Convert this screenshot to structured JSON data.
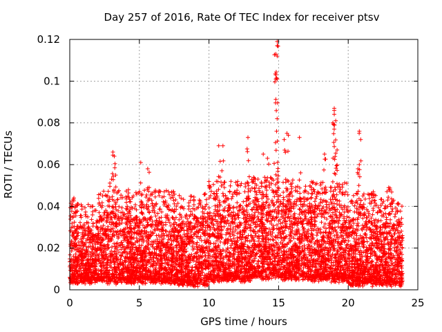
{
  "chart_data": {
    "type": "scatter",
    "title": "Day 257 of 2016, Rate Of TEC Index for receiver ptsv",
    "xlabel": "GPS time / hours",
    "ylabel": "ROTI / TECUs",
    "xlim": [
      0,
      25
    ],
    "ylim": [
      0,
      0.12
    ],
    "xticks": [
      0,
      5,
      10,
      15,
      20,
      25
    ],
    "xtick_labels": [
      "0",
      "5",
      "10",
      "15",
      "20",
      "25"
    ],
    "yticks": [
      0,
      0.02,
      0.04,
      0.06,
      0.08,
      0.1,
      0.12
    ],
    "ytick_labels": [
      "0",
      "0.02",
      "0.04",
      "0.06",
      "0.08",
      "0.1",
      "0.12"
    ],
    "grid": true,
    "marker": "+",
    "color": "#ff0000",
    "x_range_of_data": [
      0,
      23.9
    ],
    "notable_points": [
      {
        "x": 14.9,
        "y": 0.119
      },
      {
        "x": 14.9,
        "y": 0.117
      },
      {
        "x": 14.8,
        "y": 0.113
      },
      {
        "x": 14.9,
        "y": 0.112
      },
      {
        "x": 14.8,
        "y": 0.103
      },
      {
        "x": 14.9,
        "y": 0.101
      },
      {
        "x": 19.0,
        "y": 0.087
      },
      {
        "x": 19.0,
        "y": 0.086
      },
      {
        "x": 19.1,
        "y": 0.081
      },
      {
        "x": 19.0,
        "y": 0.079
      },
      {
        "x": 20.8,
        "y": 0.076
      },
      {
        "x": 20.9,
        "y": 0.072
      },
      {
        "x": 15.6,
        "y": 0.075
      },
      {
        "x": 15.4,
        "y": 0.072
      },
      {
        "x": 16.5,
        "y": 0.073
      },
      {
        "x": 12.8,
        "y": 0.073
      },
      {
        "x": 10.7,
        "y": 0.069
      },
      {
        "x": 11.0,
        "y": 0.069
      },
      {
        "x": 3.1,
        "y": 0.066
      },
      {
        "x": 3.2,
        "y": 0.064
      },
      {
        "x": 20.8,
        "y": 0.06
      },
      {
        "x": 20.7,
        "y": 0.058
      },
      {
        "x": 5.1,
        "y": 0.061
      },
      {
        "x": 5.6,
        "y": 0.058
      },
      {
        "x": 19.2,
        "y": 0.067
      },
      {
        "x": 18.3,
        "y": 0.065
      },
      {
        "x": 13.9,
        "y": 0.065
      },
      {
        "x": 14.2,
        "y": 0.063
      },
      {
        "x": 3.0,
        "y": 0.053
      },
      {
        "x": 3.3,
        "y": 0.055
      },
      {
        "x": 0.3,
        "y": 0.044
      },
      {
        "x": 0.4,
        "y": 0.04
      },
      {
        "x": 22.9,
        "y": 0.049
      },
      {
        "x": 23.0,
        "y": 0.048
      },
      {
        "x": 21.8,
        "y": 0.047
      }
    ],
    "density_profile": [
      {
        "x0": 0.0,
        "x1": 0.5,
        "ymin": 0.004,
        "ymax": 0.03
      },
      {
        "x0": 0.5,
        "x1": 2.0,
        "ymin": 0.004,
        "ymax": 0.03
      },
      {
        "x0": 2.0,
        "x1": 4.5,
        "ymin": 0.004,
        "ymax": 0.036
      },
      {
        "x0": 4.5,
        "x1": 7.5,
        "ymin": 0.004,
        "ymax": 0.036
      },
      {
        "x0": 7.5,
        "x1": 10.0,
        "ymin": 0.003,
        "ymax": 0.034
      },
      {
        "x0": 10.0,
        "x1": 13.0,
        "ymin": 0.005,
        "ymax": 0.04
      },
      {
        "x0": 13.0,
        "x1": 17.0,
        "ymin": 0.006,
        "ymax": 0.042
      },
      {
        "x0": 17.0,
        "x1": 20.0,
        "ymin": 0.005,
        "ymax": 0.04
      },
      {
        "x0": 20.0,
        "x1": 22.0,
        "ymin": 0.003,
        "ymax": 0.034
      },
      {
        "x0": 22.0,
        "x1": 23.9,
        "ymin": 0.003,
        "ymax": 0.032
      }
    ]
  }
}
